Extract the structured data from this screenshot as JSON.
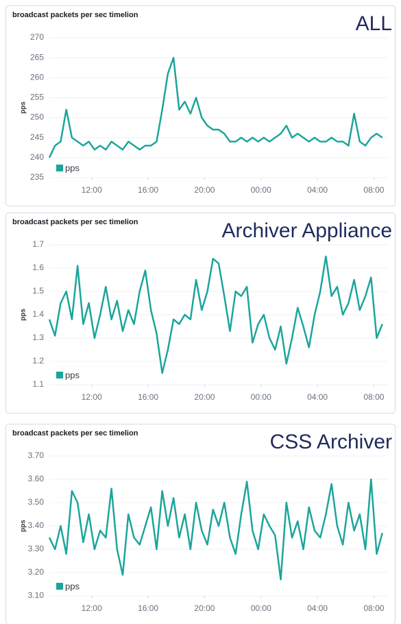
{
  "chart_data": [
    {
      "type": "line",
      "title": "broadcast packets per sec timelion",
      "label": "ALL",
      "ylabel": "pps",
      "x": [
        9,
        9.4,
        9.8,
        10.2,
        10.6,
        11,
        11.4,
        11.8,
        12.2,
        12.6,
        13,
        13.4,
        13.8,
        14.2,
        14.6,
        15,
        15.4,
        15.8,
        16.2,
        16.6,
        17,
        17.4,
        17.8,
        18.2,
        18.6,
        19,
        19.4,
        19.8,
        20.2,
        20.6,
        21,
        21.4,
        21.8,
        22.2,
        22.6,
        23,
        23.4,
        23.8,
        24.2,
        24.6,
        25,
        25.4,
        25.8,
        26.2,
        26.6,
        27,
        27.4,
        27.8,
        28.2,
        28.6,
        29,
        29.4,
        29.8,
        30.2,
        30.6,
        31,
        31.4,
        31.8,
        32.2,
        32.6
      ],
      "series": [
        {
          "name": "pps",
          "color": "#1ba59b",
          "values": [
            240,
            243,
            244,
            252,
            245,
            244,
            243,
            244,
            242,
            243,
            242,
            244,
            243,
            242,
            244,
            243,
            242,
            243,
            243,
            244,
            252,
            261,
            265,
            252,
            254,
            251,
            255,
            250,
            248,
            247,
            247,
            246,
            244,
            244,
            245,
            244,
            245,
            244,
            245,
            244,
            245,
            246,
            248,
            245,
            246,
            245,
            244,
            245,
            244,
            244,
            245,
            244,
            244,
            243,
            251,
            244,
            243,
            245,
            246,
            245
          ]
        }
      ],
      "xlim": [
        9,
        33
      ],
      "xticks": [
        {
          "value": 12,
          "label": "12:00"
        },
        {
          "value": 16,
          "label": "16:00"
        },
        {
          "value": 20,
          "label": "20:00"
        },
        {
          "value": 24,
          "label": "00:00"
        },
        {
          "value": 28,
          "label": "04:00"
        },
        {
          "value": 32,
          "label": "08:00"
        }
      ],
      "ylim": [
        235,
        270
      ],
      "yticks": [
        235,
        240,
        245,
        250,
        255,
        260,
        265,
        270
      ],
      "grid": true
    },
    {
      "type": "line",
      "title": "broadcast packets per sec timelion",
      "label": "Archiver Appliance",
      "ylabel": "pps",
      "x": [
        9,
        9.4,
        9.8,
        10.2,
        10.6,
        11,
        11.4,
        11.8,
        12.2,
        12.6,
        13,
        13.4,
        13.8,
        14.2,
        14.6,
        15,
        15.4,
        15.8,
        16.2,
        16.6,
        17,
        17.4,
        17.8,
        18.2,
        18.6,
        19,
        19.4,
        19.8,
        20.2,
        20.6,
        21,
        21.4,
        21.8,
        22.2,
        22.6,
        23,
        23.4,
        23.8,
        24.2,
        24.6,
        25,
        25.4,
        25.8,
        26.2,
        26.6,
        27,
        27.4,
        27.8,
        28.2,
        28.6,
        29,
        29.4,
        29.8,
        30.2,
        30.6,
        31,
        31.4,
        31.8,
        32.2,
        32.6
      ],
      "series": [
        {
          "name": "pps",
          "color": "#1ba59b",
          "values": [
            1.38,
            1.31,
            1.45,
            1.5,
            1.38,
            1.61,
            1.36,
            1.45,
            1.3,
            1.4,
            1.52,
            1.38,
            1.46,
            1.33,
            1.42,
            1.36,
            1.5,
            1.59,
            1.42,
            1.32,
            1.15,
            1.25,
            1.38,
            1.36,
            1.4,
            1.38,
            1.55,
            1.42,
            1.5,
            1.64,
            1.62,
            1.48,
            1.33,
            1.5,
            1.48,
            1.52,
            1.28,
            1.36,
            1.4,
            1.3,
            1.25,
            1.35,
            1.19,
            1.3,
            1.43,
            1.35,
            1.26,
            1.4,
            1.5,
            1.65,
            1.48,
            1.52,
            1.4,
            1.45,
            1.55,
            1.42,
            1.48,
            1.56,
            1.3,
            1.36
          ]
        }
      ],
      "xlim": [
        9,
        33
      ],
      "xticks": [
        {
          "value": 12,
          "label": "12:00"
        },
        {
          "value": 16,
          "label": "16:00"
        },
        {
          "value": 20,
          "label": "20:00"
        },
        {
          "value": 24,
          "label": "00:00"
        },
        {
          "value": 28,
          "label": "04:00"
        },
        {
          "value": 32,
          "label": "08:00"
        }
      ],
      "ylim": [
        1.1,
        1.7
      ],
      "yticks": [
        1.1,
        1.2,
        1.3,
        1.4,
        1.5,
        1.6,
        1.7
      ],
      "grid": true
    },
    {
      "type": "line",
      "title": "broadcast packets per sec timelion",
      "label": "CSS Archiver",
      "ylabel": "pps",
      "x": [
        9,
        9.4,
        9.8,
        10.2,
        10.6,
        11,
        11.4,
        11.8,
        12.2,
        12.6,
        13,
        13.4,
        13.8,
        14.2,
        14.6,
        15,
        15.4,
        15.8,
        16.2,
        16.6,
        17,
        17.4,
        17.8,
        18.2,
        18.6,
        19,
        19.4,
        19.8,
        20.2,
        20.6,
        21,
        21.4,
        21.8,
        22.2,
        22.6,
        23,
        23.4,
        23.8,
        24.2,
        24.6,
        25,
        25.4,
        25.8,
        26.2,
        26.6,
        27,
        27.4,
        27.8,
        28.2,
        28.6,
        29,
        29.4,
        29.8,
        30.2,
        30.6,
        31,
        31.4,
        31.8,
        32.2,
        32.6
      ],
      "series": [
        {
          "name": "pps",
          "color": "#1ba59b",
          "values": [
            3.35,
            3.3,
            3.4,
            3.28,
            3.55,
            3.5,
            3.33,
            3.45,
            3.3,
            3.38,
            3.35,
            3.56,
            3.3,
            3.19,
            3.45,
            3.35,
            3.32,
            3.4,
            3.48,
            3.3,
            3.55,
            3.4,
            3.52,
            3.35,
            3.45,
            3.3,
            3.5,
            3.38,
            3.32,
            3.47,
            3.4,
            3.5,
            3.35,
            3.28,
            3.45,
            3.59,
            3.38,
            3.3,
            3.45,
            3.4,
            3.36,
            3.17,
            3.5,
            3.35,
            3.42,
            3.3,
            3.48,
            3.38,
            3.35,
            3.45,
            3.58,
            3.4,
            3.32,
            3.5,
            3.38,
            3.45,
            3.3,
            3.6,
            3.28,
            3.37
          ]
        }
      ],
      "xlim": [
        9,
        33
      ],
      "xticks": [
        {
          "value": 12,
          "label": "12:00"
        },
        {
          "value": 16,
          "label": "16:00"
        },
        {
          "value": 20,
          "label": "20:00"
        },
        {
          "value": 24,
          "label": "00:00"
        },
        {
          "value": 28,
          "label": "04:00"
        },
        {
          "value": 32,
          "label": "08:00"
        }
      ],
      "ylim": [
        3.1,
        3.7
      ],
      "yticks": [
        {
          "value": 3.1,
          "label": "3.10"
        },
        {
          "value": 3.2,
          "label": "3.20"
        },
        {
          "value": 3.3,
          "label": "3.30"
        },
        {
          "value": 3.4,
          "label": "3.40"
        },
        {
          "value": 3.5,
          "label": "3.50"
        },
        {
          "value": 3.6,
          "label": "3.60"
        },
        {
          "value": 3.7,
          "label": "3.70"
        }
      ],
      "grid": true
    }
  ]
}
